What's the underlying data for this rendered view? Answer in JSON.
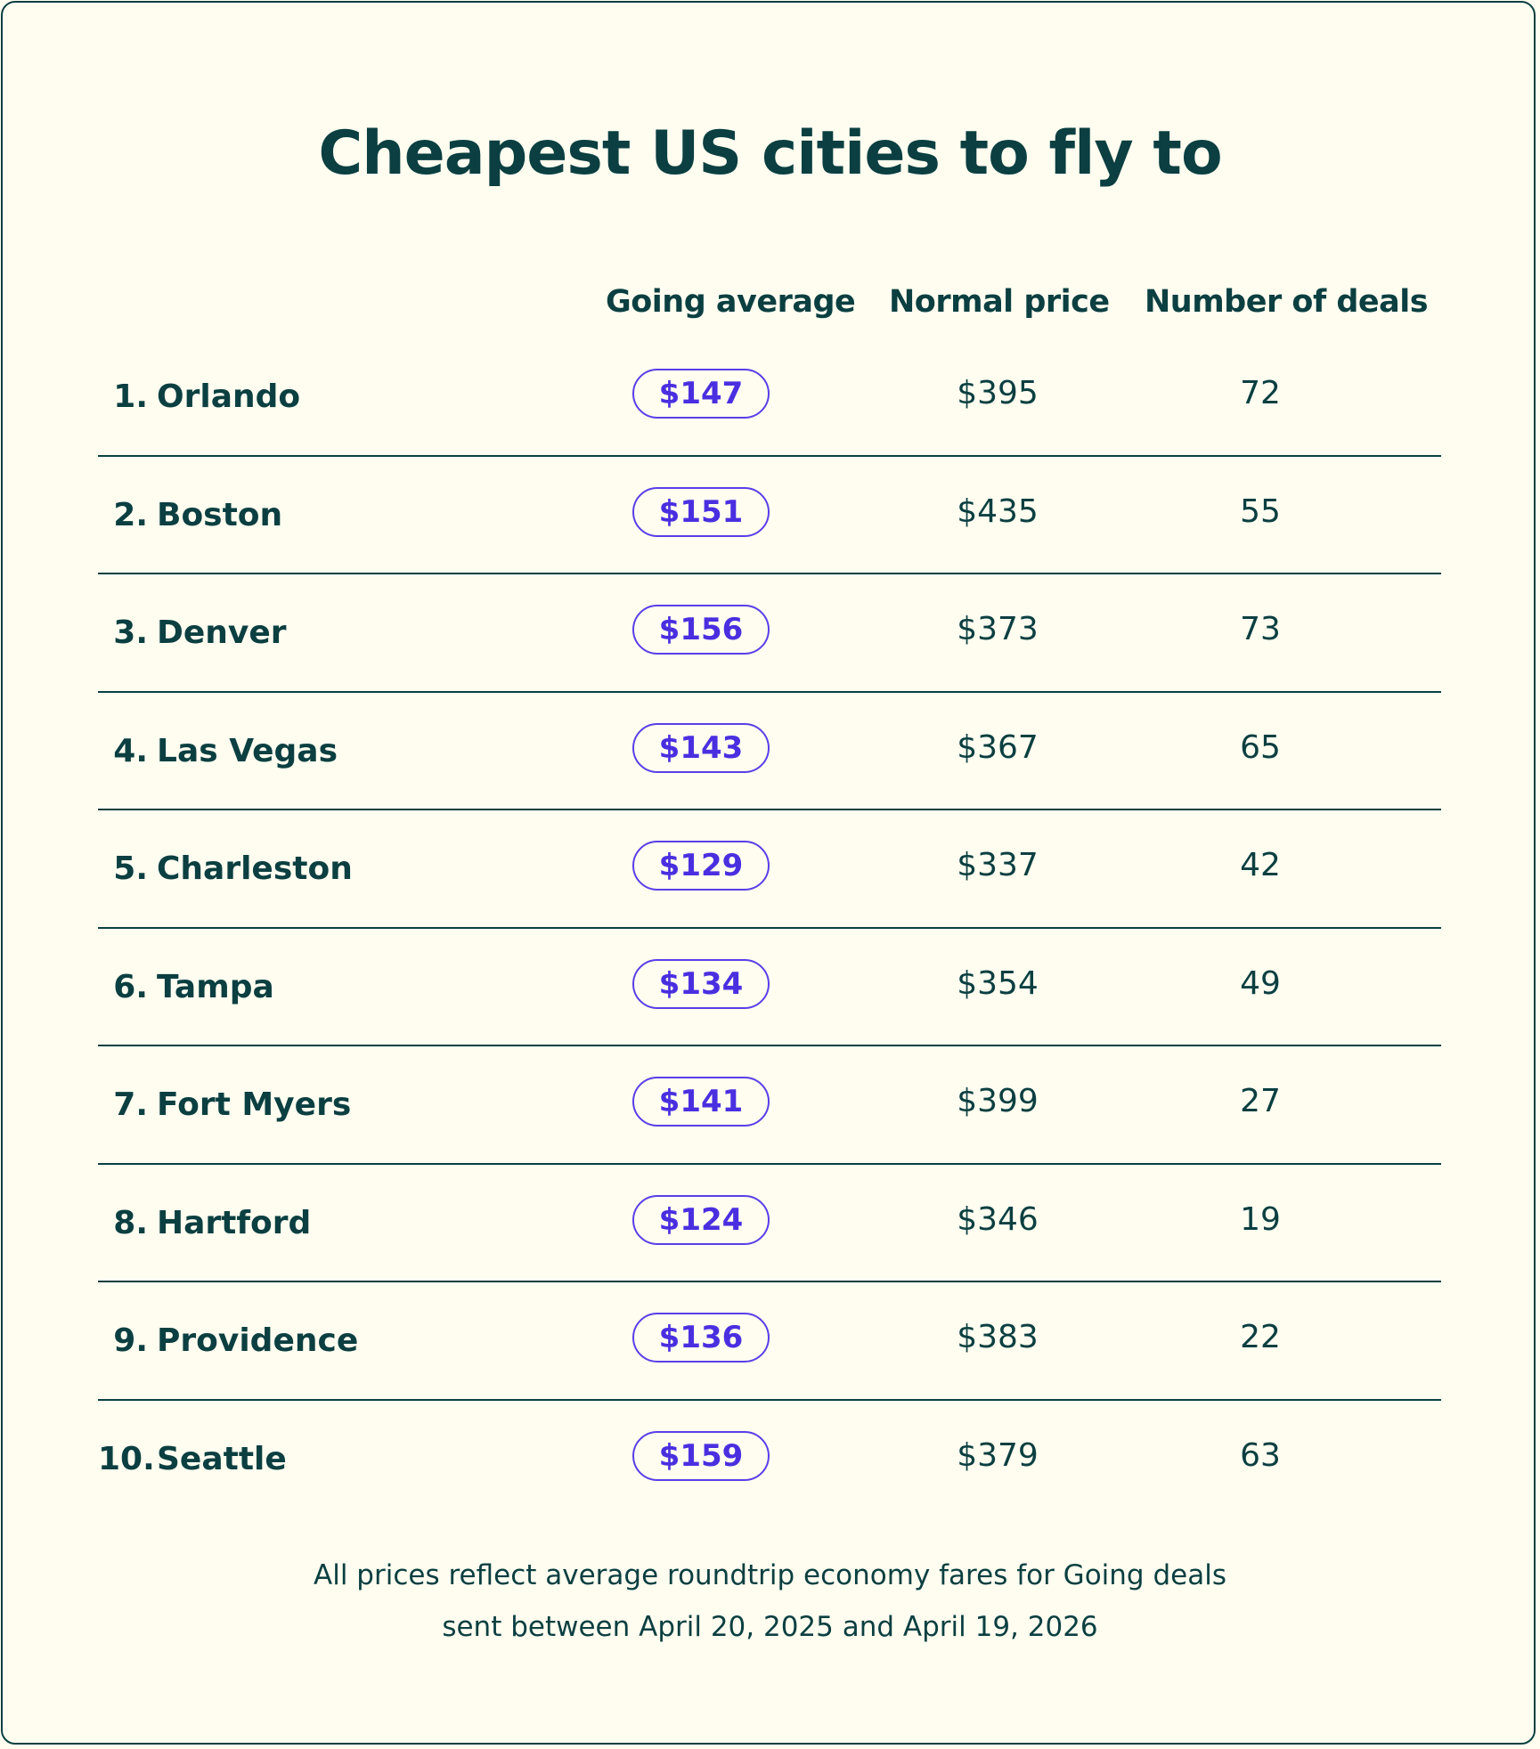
{
  "title": "Cheapest US cities to fly to",
  "columns": {
    "going_average": "Going average",
    "normal_price": "Normal price",
    "number_of_deals": "Number of deals"
  },
  "rows": [
    {
      "rank": "1.",
      "city": "Orlando",
      "going": "$147",
      "normal": "$395",
      "deals": "72"
    },
    {
      "rank": "2.",
      "city": "Boston",
      "going": "$151",
      "normal": "$435",
      "deals": "55"
    },
    {
      "rank": "3.",
      "city": "Denver",
      "going": "$156",
      "normal": "$373",
      "deals": "73"
    },
    {
      "rank": "4.",
      "city": "Las Vegas",
      "going": "$143",
      "normal": "$367",
      "deals": "65"
    },
    {
      "rank": "5.",
      "city": "Charleston",
      "going": "$129",
      "normal": "$337",
      "deals": "42"
    },
    {
      "rank": "6.",
      "city": "Tampa",
      "going": "$134",
      "normal": "$354",
      "deals": "49"
    },
    {
      "rank": "7.",
      "city": "Fort Myers",
      "going": "$141",
      "normal": "$399",
      "deals": "27"
    },
    {
      "rank": "8.",
      "city": "Hartford",
      "going": "$124",
      "normal": "$346",
      "deals": "19"
    },
    {
      "rank": "9.",
      "city": "Providence",
      "going": "$136",
      "normal": "$383",
      "deals": "22"
    },
    {
      "rank": "10.",
      "city": "Seattle",
      "going": "$159",
      "normal": "$379",
      "deals": "63"
    }
  ],
  "footnote": {
    "line1": "All prices reflect average roundtrip economy fares for Going deals",
    "line2": "sent between April 20, 2025 and April 19, 2026"
  },
  "colors": {
    "text": "#0b3f41",
    "background": "#fefdf0",
    "accent": "#4a2fe0"
  }
}
